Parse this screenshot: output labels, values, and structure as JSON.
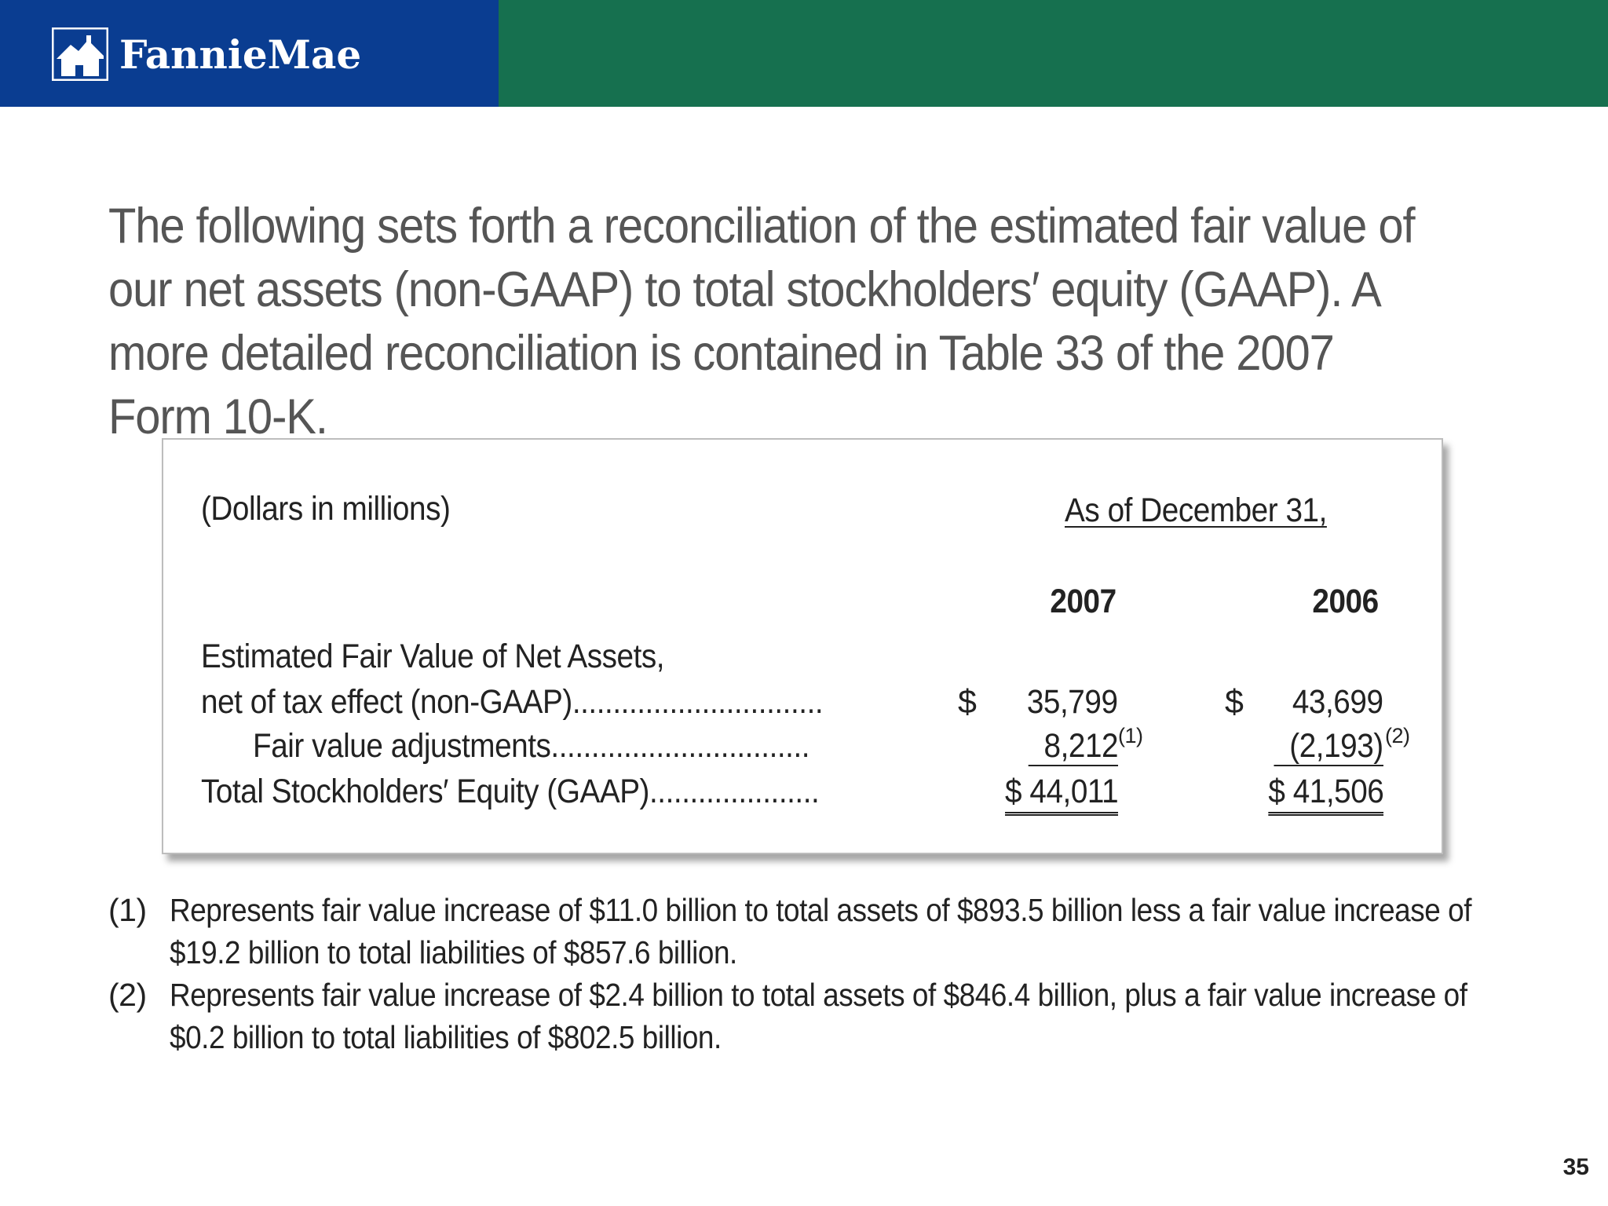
{
  "brand": {
    "logo_text": "FannieMae"
  },
  "intro": {
    "text": "The following sets forth a reconciliation of the estimated fair value of our net assets (non-GAAP) to total stockholders′ equity (GAAP).  A more detailed reconciliation is contained in Table 33 of the 2007 Form 10-K."
  },
  "table": {
    "units_label": "(Dollars in millions)",
    "period_header": "As of December 31,",
    "years": [
      "2007",
      "2006"
    ],
    "rows": [
      {
        "label_line1": "Estimated Fair Value of Net Assets,",
        "label_line2": "net of tax effect (non-GAAP)...............................",
        "currency_2007": "$",
        "value_2007": "35,799",
        "currency_2006": "$",
        "value_2006": "43,699"
      },
      {
        "label": "Fair value adjustments................................",
        "value_2007": "8,212",
        "footnote_2007": "(1)",
        "value_2006": "(2,193)",
        "footnote_2006": "(2)"
      },
      {
        "label": "Total Stockholders′ Equity (GAAP).....................",
        "value_2007": "$ 44,011",
        "value_2006": "$ 41,506"
      }
    ]
  },
  "footnotes": [
    {
      "num": "(1)",
      "line1": "Represents fair value increase of $11.0 billion to total assets of $893.5 billion less a fair value increase of",
      "line2": "$19.2 billion to total liabilities of $857.6 billion."
    },
    {
      "num": "(2)",
      "line1": "Represents fair value increase of $2.4 billion to total assets of $846.4 billion, plus a fair value increase of",
      "line2": "$0.2 billion to total liabilities of $802.5 billion."
    }
  ],
  "page_number": "35",
  "colors": {
    "banner_blue": "#0a3d91",
    "banner_green": "#16704f",
    "intro_text": "#555555"
  }
}
